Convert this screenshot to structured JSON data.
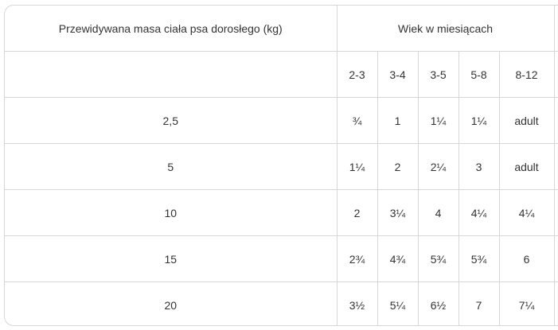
{
  "header": {
    "mass_label": "Przewidywana masa ciała psa dorosłego (kg)",
    "age_label": "Wiek w miesiącach"
  },
  "age_columns": [
    "2-3",
    "3-4",
    "3-5",
    "5-8",
    "8-12"
  ],
  "rows": [
    {
      "mass": "2,5",
      "values": [
        "¾",
        "1",
        "1¼",
        "1¼",
        "adult"
      ]
    },
    {
      "mass": "5",
      "values": [
        "1¼",
        "2",
        "2¼",
        "3",
        "adult"
      ]
    },
    {
      "mass": "10",
      "values": [
        "2",
        "3¼",
        "4",
        "4¼",
        "4¼"
      ]
    },
    {
      "mass": "15",
      "values": [
        "2¾",
        "4¾",
        "5¾",
        "5¾",
        "6"
      ]
    },
    {
      "mass": "20",
      "values": [
        "3½",
        "5¼",
        "6½",
        "7",
        "7¼"
      ]
    }
  ]
}
